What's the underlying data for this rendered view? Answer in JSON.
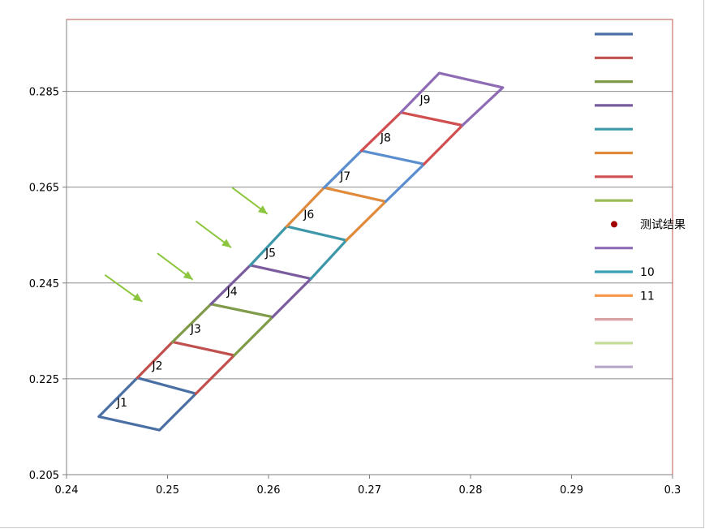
{
  "chart_data": {
    "type": "line",
    "xlim": [
      0.24,
      0.3
    ],
    "ylim": [
      0.205,
      0.3
    ],
    "x_ticks": [
      "0.24",
      "0.25",
      "0.26",
      "0.27",
      "0.28",
      "0.29",
      "0.3"
    ],
    "y_ticks": [
      "0.205",
      "0.225",
      "0.245",
      "0.265",
      "0.285"
    ],
    "y_tick_values": [
      0.205,
      0.225,
      0.245,
      0.265,
      0.285
    ],
    "grid": "horizontal",
    "legend_position": "right",
    "frame_color": "#c0504d",
    "series": [
      {
        "color": "#4a6fa5",
        "points": [
          [
            0.2432,
            0.2171
          ],
          [
            0.2492,
            0.2143
          ],
          [
            0.2528,
            0.2219
          ],
          [
            0.247,
            0.2252
          ],
          [
            0.2432,
            0.2171
          ]
        ]
      },
      {
        "color": "#c0504d",
        "points": [
          [
            0.247,
            0.2252
          ],
          [
            0.2505,
            0.2327
          ],
          [
            0.2566,
            0.2299
          ],
          [
            0.2528,
            0.2219
          ]
        ]
      },
      {
        "color": "#7f9a48",
        "points": [
          [
            0.2505,
            0.2327
          ],
          [
            0.2543,
            0.2406
          ],
          [
            0.2604,
            0.2379
          ],
          [
            0.2566,
            0.2299
          ]
        ]
      },
      {
        "color": "#7a5c9e",
        "points": [
          [
            0.2543,
            0.2406
          ],
          [
            0.2582,
            0.2487
          ],
          [
            0.2642,
            0.2459
          ],
          [
            0.2604,
            0.2379
          ]
        ]
      },
      {
        "color": "#3c97a8",
        "points": [
          [
            0.2582,
            0.2487
          ],
          [
            0.2618,
            0.2568
          ],
          [
            0.2677,
            0.2539
          ],
          [
            0.2642,
            0.2459
          ]
        ]
      },
      {
        "color": "#e08a3c",
        "points": [
          [
            0.2618,
            0.2568
          ],
          [
            0.2655,
            0.2649
          ],
          [
            0.2716,
            0.262
          ],
          [
            0.2677,
            0.2539
          ]
        ]
      },
      {
        "color": "#5b8ecf",
        "points": [
          [
            0.2655,
            0.2649
          ],
          [
            0.2692,
            0.2726
          ],
          [
            0.2754,
            0.2698
          ],
          [
            0.2716,
            0.262
          ]
        ]
      },
      {
        "color": "#d04f50",
        "points": [
          [
            0.2692,
            0.2726
          ],
          [
            0.2731,
            0.2806
          ],
          [
            0.2792,
            0.2779
          ],
          [
            0.2754,
            0.2698
          ]
        ]
      },
      {
        "color": "#8e6bb5",
        "points": [
          [
            0.2731,
            0.2806
          ],
          [
            0.2769,
            0.2888
          ],
          [
            0.2832,
            0.2858
          ],
          [
            0.2792,
            0.2779
          ]
        ]
      }
    ],
    "segment_labels": [
      {
        "text": "J1",
        "x": 0.2455,
        "y": 0.2192
      },
      {
        "text": "J2",
        "x": 0.249,
        "y": 0.2269
      },
      {
        "text": "J3",
        "x": 0.2528,
        "y": 0.2346
      },
      {
        "text": "J4",
        "x": 0.2564,
        "y": 0.2424
      },
      {
        "text": "J5",
        "x": 0.2602,
        "y": 0.2505
      },
      {
        "text": "J6",
        "x": 0.264,
        "y": 0.2585
      },
      {
        "text": "J7",
        "x": 0.2676,
        "y": 0.2665
      },
      {
        "text": "J8",
        "x": 0.2716,
        "y": 0.2745
      },
      {
        "text": "J9",
        "x": 0.2755,
        "y": 0.2825
      }
    ],
    "arrows": [
      {
        "color": "#8cc63f",
        "from": [
          0.2438,
          0.2467
        ],
        "to": [
          0.2475,
          0.2411
        ]
      },
      {
        "color": "#8cc63f",
        "from": [
          0.249,
          0.2512
        ],
        "to": [
          0.2525,
          0.2457
        ]
      },
      {
        "color": "#8cc63f",
        "from": [
          0.2528,
          0.2579
        ],
        "to": [
          0.2563,
          0.2524
        ]
      },
      {
        "color": "#8cc63f",
        "from": [
          0.2564,
          0.2649
        ],
        "to": [
          0.2599,
          0.2594
        ]
      }
    ],
    "legend": [
      {
        "kind": "line",
        "color": "#4a6fa5",
        "label": ""
      },
      {
        "kind": "line",
        "color": "#c0504d",
        "label": ""
      },
      {
        "kind": "line",
        "color": "#7f9a48",
        "label": ""
      },
      {
        "kind": "line",
        "color": "#7a5c9e",
        "label": ""
      },
      {
        "kind": "line",
        "color": "#3c97a8",
        "label": ""
      },
      {
        "kind": "line",
        "color": "#e08a3c",
        "label": ""
      },
      {
        "kind": "line",
        "color": "#d04f50",
        "label": ""
      },
      {
        "kind": "line",
        "color": "#9bbb59",
        "label": ""
      },
      {
        "kind": "marker",
        "color": "#a00000",
        "label": "测试结果"
      },
      {
        "kind": "line",
        "color": "#8e6bb5",
        "label": ""
      },
      {
        "kind": "line",
        "color": "#3aa0b8",
        "label": "10"
      },
      {
        "kind": "line",
        "color": "#f79646",
        "label": "11"
      },
      {
        "kind": "line",
        "color": "#d9a2a2",
        "label": ""
      },
      {
        "kind": "line",
        "color": "#c3dc9a",
        "label": ""
      },
      {
        "kind": "line",
        "color": "#b6a6c8",
        "label": ""
      }
    ]
  }
}
